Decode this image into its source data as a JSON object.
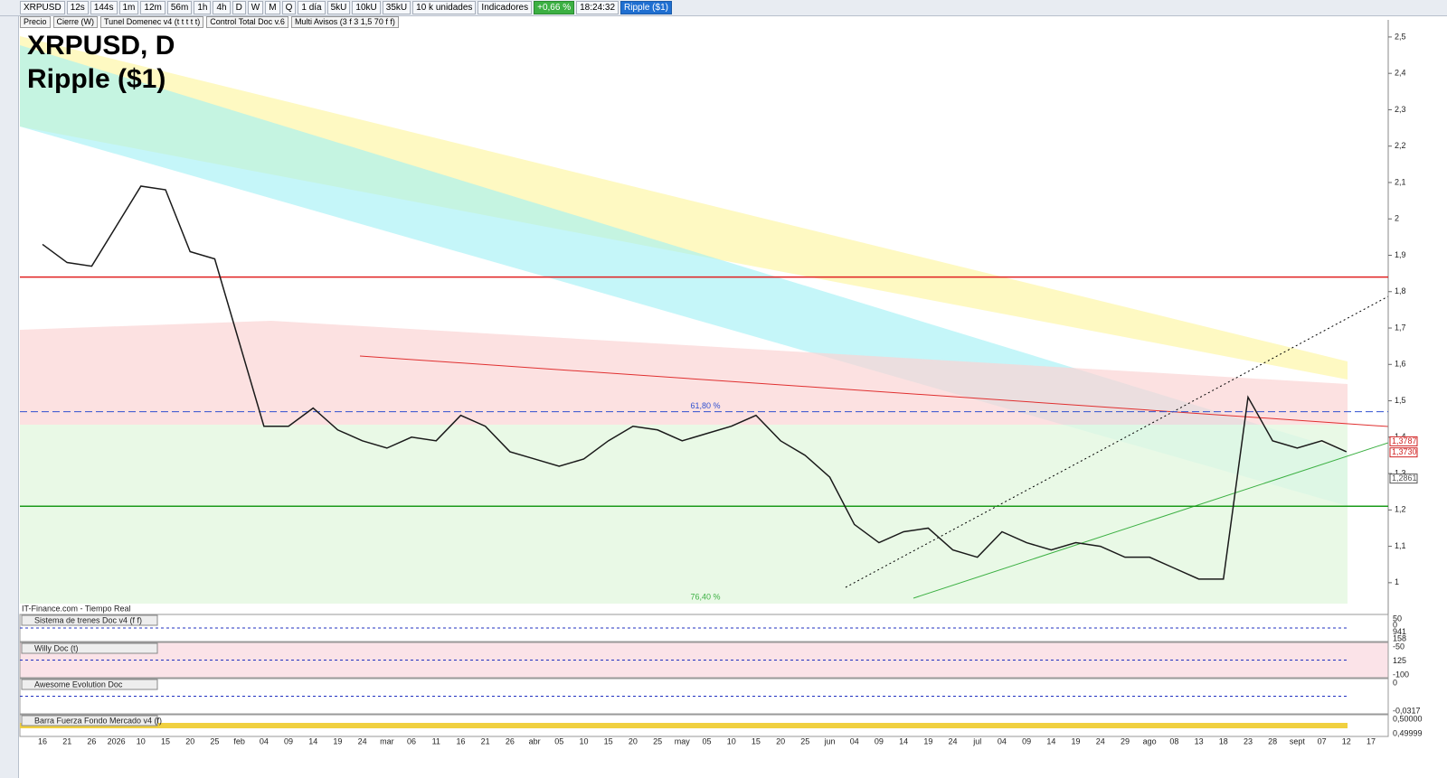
{
  "toolbar": {
    "items": [
      "XRPUSD",
      "12s",
      "144s",
      "1m",
      "12m",
      "56m",
      "1h",
      "4h",
      "D",
      "W",
      "M",
      "Q",
      "1 día",
      "5kU",
      "10kU",
      "35kU",
      "10 k unidades",
      "Indicadores",
      "+0,66 %",
      "18:24:32",
      "Ripple ($1)"
    ],
    "studies": [
      "Precio",
      "Cierre (W)",
      "Tunel Domenec v4 (t t t t t)",
      "Control Total Doc v.6",
      "Multi Avisos (3 f 3 1,5 70 f f)"
    ]
  },
  "chart_data": {
    "type": "line",
    "title": "XRPUSD, D",
    "subtitle": "Ripple ($1)",
    "source": "IT-Finance.com - Tiempo Real",
    "categories": [
      "16",
      "21",
      "26",
      "2026",
      "10",
      "15",
      "20",
      "25",
      "feb",
      "04",
      "09",
      "14",
      "19",
      "24",
      "mar",
      "06",
      "11",
      "16",
      "21",
      "26",
      "abr",
      "05",
      "10",
      "15",
      "20",
      "25",
      "may",
      "05",
      "10",
      "15",
      "20",
      "25",
      "jun",
      "04",
      "09",
      "14",
      "19",
      "24",
      "jul",
      "04",
      "09",
      "14",
      "19",
      "24",
      "29",
      "ago",
      "08",
      "13",
      "18",
      "23",
      "28",
      "sept",
      "07",
      "12",
      "17"
    ],
    "series": [
      {
        "name": "XRPUSD",
        "color": "#1a1a1a",
        "values": [
          1.93,
          1.88,
          1.87,
          1.98,
          2.09,
          2.08,
          1.91,
          1.89,
          1.66,
          1.43,
          1.43,
          1.48,
          1.42,
          1.39,
          1.37,
          1.4,
          1.39,
          1.46,
          1.43,
          1.36,
          1.34,
          1.32,
          1.34,
          1.39,
          1.43,
          1.42,
          1.39,
          1.41,
          1.43,
          1.46,
          1.39,
          1.35,
          1.29,
          1.16,
          1.11,
          1.14,
          1.15,
          1.09,
          1.07,
          1.14,
          1.11,
          1.09,
          1.11,
          1.1,
          1.07,
          1.07,
          1.04,
          1.01,
          1.01,
          1.51,
          1.39,
          1.37,
          1.39,
          1.36,
          null
        ]
      }
    ],
    "ylim": [
      0.945,
      2.547
    ],
    "yticks": [
      {
        "value": 1.0,
        "label": "1"
      },
      {
        "value": 1.1,
        "label": "1,1"
      },
      {
        "value": 1.2,
        "label": "1,2"
      },
      {
        "value": 1.3,
        "label": "1,3"
      },
      {
        "value": 1.4,
        "label": "1,4"
      },
      {
        "value": 1.5,
        "label": "1,5"
      },
      {
        "value": 1.6,
        "label": "1,6"
      },
      {
        "value": 1.7,
        "label": "1,7"
      },
      {
        "value": 1.8,
        "label": "1,8"
      },
      {
        "value": 1.9,
        "label": "1,9"
      },
      {
        "value": 2.0,
        "label": "2"
      },
      {
        "value": 2.1,
        "label": "2,1"
      },
      {
        "value": 2.2,
        "label": "2,2"
      },
      {
        "value": 2.3,
        "label": "2,3"
      },
      {
        "value": 2.4,
        "label": "2,4"
      },
      {
        "value": 2.5,
        "label": "2,5"
      }
    ],
    "levels": [
      {
        "value": 1.84,
        "color": "#e02020"
      },
      {
        "value": 1.21,
        "color": "#1a9a1a"
      },
      {
        "value": 1.47,
        "color": "#3050d0",
        "label": "61,80 %"
      }
    ],
    "price_labels": [
      {
        "value": 1.3787,
        "label": "1,3787",
        "color": "#d02020"
      },
      {
        "value": 1.373,
        "label": "1,3730",
        "color": "#d02020"
      },
      {
        "value": 1.2861,
        "label": "1,2861",
        "color": "#555"
      }
    ],
    "fib_bottom": "76,40 %"
  },
  "panels": [
    {
      "title": "Sistema de trenes Doc v4 (f f)",
      "labels": [
        "50",
        "0",
        "941",
        "158"
      ]
    },
    {
      "title": "Willy Doc (t)",
      "labels": [
        "-50",
        "125",
        "-100"
      ]
    },
    {
      "title": "Awesome Evolution Doc",
      "labels": [
        "0",
        "-0,0317"
      ]
    },
    {
      "title": "Barra Fuerza Fondo Mercado v4 (f)",
      "labels": [
        "0,50000",
        "0,49999"
      ]
    }
  ]
}
